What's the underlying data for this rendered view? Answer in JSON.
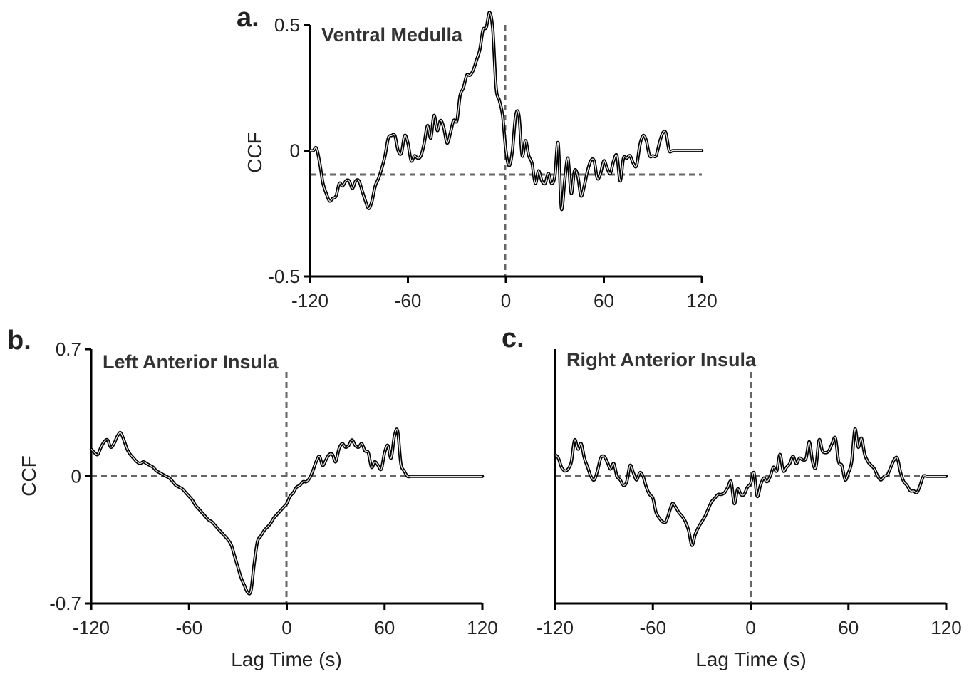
{
  "chart_data": [
    {
      "type": "line",
      "panel_letter": "a.",
      "title": "Ventral Medulla",
      "xlabel": "",
      "ylabel": "CCF",
      "xlim": [
        -120,
        120
      ],
      "ylim": [
        -0.5,
        0.5
      ],
      "x_ticks": [
        -120,
        -60,
        0,
        60,
        120
      ],
      "x_tick_labels": [
        "-120",
        "-60",
        "0",
        "60",
        "120"
      ],
      "y_ticks": [
        -0.5,
        0,
        0.5
      ],
      "y_tick_labels": [
        "-0.5",
        "0",
        "0.5"
      ],
      "reference_lines": {
        "x": 0,
        "y": 0
      },
      "grid": false,
      "series": [
        {
          "x": [
            -120,
            -118,
            -116,
            -114,
            -112,
            -110,
            -108,
            -106,
            -104,
            -102,
            -100,
            -98,
            -96,
            -94,
            -92,
            -90,
            -88,
            -86,
            -84,
            -82,
            -80,
            -78,
            -76,
            -74,
            -72,
            -70,
            -68,
            -66,
            -64,
            -62,
            -60,
            -58,
            -56,
            -54,
            -52,
            -50,
            -48,
            -46,
            -44,
            -42,
            -40,
            -38,
            -36,
            -34,
            -32,
            -30,
            -28,
            -26,
            -24,
            -22,
            -20,
            -18,
            -16,
            -14,
            -12,
            -10,
            -8,
            -6,
            -4,
            -2,
            0,
            2,
            4,
            6,
            8,
            10,
            12,
            14,
            16,
            18,
            20,
            22,
            24,
            26,
            28,
            30,
            32,
            34,
            36,
            38,
            40,
            42,
            44,
            46,
            48,
            50,
            52,
            54,
            56,
            58,
            60,
            62,
            64,
            66,
            68,
            70,
            72,
            74,
            76,
            78,
            80,
            82,
            84,
            86,
            88,
            90,
            92,
            94,
            96,
            98,
            100,
            102,
            104,
            106,
            108,
            110,
            112,
            114,
            116,
            118,
            120
          ],
          "y": [
            0.0,
            0.0,
            0.01,
            -0.05,
            -0.13,
            -0.17,
            -0.2,
            -0.19,
            -0.18,
            -0.13,
            -0.14,
            -0.12,
            -0.12,
            -0.15,
            -0.12,
            -0.12,
            -0.16,
            -0.2,
            -0.23,
            -0.2,
            -0.14,
            -0.11,
            -0.07,
            -0.02,
            0.05,
            0.06,
            0.06,
            0.0,
            -0.01,
            0.06,
            0.03,
            -0.04,
            -0.02,
            -0.03,
            -0.02,
            0.03,
            0.1,
            0.05,
            0.14,
            0.08,
            0.12,
            0.09,
            0.03,
            0.07,
            0.12,
            0.12,
            0.22,
            0.25,
            0.3,
            0.3,
            0.32,
            0.36,
            0.4,
            0.48,
            0.49,
            0.55,
            0.48,
            0.25,
            0.2,
            0.14,
            0.0,
            -0.06,
            0.0,
            0.14,
            0.14,
            -0.02,
            0.04,
            -0.02,
            -0.05,
            -0.13,
            -0.08,
            -0.12,
            -0.13,
            -0.09,
            -0.13,
            -0.1,
            0.03,
            -0.23,
            -0.12,
            -0.03,
            -0.17,
            -0.08,
            -0.1,
            -0.18,
            -0.14,
            -0.08,
            -0.04,
            -0.04,
            -0.11,
            -0.09,
            -0.04,
            -0.07,
            -0.09,
            -0.04,
            -0.02,
            -0.12,
            -0.03,
            -0.03,
            -0.02,
            -0.05,
            -0.06,
            0.02,
            0.06,
            0.04,
            -0.02,
            -0.02,
            -0.02,
            0.03,
            0.07,
            0.07,
            0.0,
            0.0,
            0.0,
            0.0,
            0.0,
            0.0,
            0.0,
            0.0,
            0.0,
            0.0,
            0.0
          ]
        }
      ]
    },
    {
      "type": "line",
      "panel_letter": "b.",
      "title": "Left Anterior Insula",
      "xlabel": "Lag Time (s)",
      "ylabel": "CCF",
      "xlim": [
        -120,
        120
      ],
      "ylim": [
        -0.7,
        0.7
      ],
      "x_ticks": [
        -120,
        -60,
        0,
        60,
        120
      ],
      "x_tick_labels": [
        "-120",
        "-60",
        "0",
        "60",
        "120"
      ],
      "y_ticks": [
        -0.7,
        0,
        0.7
      ],
      "y_tick_labels": [
        "-0.7",
        "0",
        "0.7"
      ],
      "reference_lines": {
        "x": 0,
        "y": 0
      },
      "grid": false,
      "series": [
        {
          "x": [
            -120,
            -118,
            -116,
            -114,
            -112,
            -110,
            -108,
            -106,
            -104,
            -102,
            -100,
            -98,
            -96,
            -94,
            -92,
            -90,
            -88,
            -86,
            -84,
            -82,
            -80,
            -78,
            -76,
            -74,
            -72,
            -70,
            -68,
            -66,
            -64,
            -62,
            -60,
            -58,
            -56,
            -54,
            -52,
            -50,
            -48,
            -46,
            -44,
            -42,
            -40,
            -38,
            -36,
            -34,
            -32,
            -30,
            -28,
            -26,
            -24,
            -22,
            -20,
            -18,
            -16,
            -14,
            -12,
            -10,
            -8,
            -6,
            -4,
            -2,
            0,
            2,
            4,
            6,
            8,
            10,
            12,
            14,
            16,
            18,
            20,
            22,
            24,
            26,
            28,
            30,
            32,
            34,
            36,
            38,
            40,
            42,
            44,
            46,
            48,
            50,
            52,
            54,
            56,
            58,
            60,
            62,
            64,
            66,
            68,
            70,
            72,
            74,
            76,
            78,
            80,
            82,
            84,
            86,
            88,
            90,
            92,
            94,
            96,
            98,
            100,
            102,
            104,
            106,
            108,
            110,
            112,
            114,
            116,
            118,
            120
          ],
          "y": [
            0.15,
            0.13,
            0.12,
            0.16,
            0.19,
            0.2,
            0.16,
            0.18,
            0.22,
            0.24,
            0.2,
            0.15,
            0.12,
            0.1,
            0.08,
            0.07,
            0.08,
            0.07,
            0.06,
            0.05,
            0.03,
            0.02,
            0.01,
            0.0,
            -0.01,
            -0.03,
            -0.05,
            -0.06,
            -0.07,
            -0.09,
            -0.11,
            -0.13,
            -0.16,
            -0.18,
            -0.2,
            -0.22,
            -0.24,
            -0.25,
            -0.27,
            -0.29,
            -0.31,
            -0.33,
            -0.35,
            -0.38,
            -0.44,
            -0.5,
            -0.56,
            -0.6,
            -0.64,
            -0.63,
            -0.48,
            -0.36,
            -0.33,
            -0.3,
            -0.28,
            -0.26,
            -0.23,
            -0.21,
            -0.19,
            -0.17,
            -0.15,
            -0.11,
            -0.09,
            -0.06,
            -0.05,
            -0.03,
            -0.03,
            -0.01,
            0.03,
            0.08,
            0.11,
            0.06,
            0.09,
            0.12,
            0.12,
            0.08,
            0.15,
            0.18,
            0.16,
            0.17,
            0.2,
            0.17,
            0.16,
            0.18,
            0.14,
            0.13,
            0.05,
            0.08,
            0.06,
            0.04,
            0.13,
            0.17,
            0.1,
            0.22,
            0.25,
            0.07,
            0.03,
            0.0,
            0.0,
            0.0,
            0.0,
            0.0,
            0.0,
            0.0,
            0.0,
            0.0,
            0.0,
            0.0,
            0.0,
            0.0,
            0.0,
            0.0,
            0.0,
            0.0,
            0.0,
            0.0,
            0.0,
            0.0,
            0.0,
            0.0,
            0.0
          ]
        }
      ]
    },
    {
      "type": "line",
      "panel_letter": "c.",
      "title": "Right Anterior Insula",
      "xlabel": "Lag Time (s)",
      "ylabel": "",
      "xlim": [
        -120,
        120
      ],
      "ylim": [
        -0.7,
        0.7
      ],
      "x_ticks": [
        -120,
        -60,
        0,
        60,
        120
      ],
      "x_tick_labels": [
        "-120",
        "-60",
        "0",
        "60",
        "120"
      ],
      "y_ticks": [],
      "y_tick_labels": [],
      "reference_lines": {
        "x": 0,
        "y": 0
      },
      "grid": false,
      "series": [
        {
          "x": [
            -120,
            -118,
            -116,
            -114,
            -112,
            -110,
            -108,
            -106,
            -104,
            -102,
            -100,
            -98,
            -96,
            -94,
            -92,
            -90,
            -88,
            -86,
            -84,
            -82,
            -80,
            -78,
            -76,
            -74,
            -72,
            -70,
            -68,
            -66,
            -64,
            -62,
            -60,
            -58,
            -56,
            -54,
            -52,
            -50,
            -48,
            -46,
            -44,
            -42,
            -40,
            -38,
            -36,
            -34,
            -32,
            -30,
            -28,
            -26,
            -24,
            -22,
            -20,
            -18,
            -16,
            -14,
            -12,
            -10,
            -8,
            -6,
            -4,
            -2,
            0,
            2,
            4,
            6,
            8,
            10,
            12,
            14,
            16,
            18,
            20,
            22,
            24,
            26,
            28,
            30,
            32,
            34,
            36,
            38,
            40,
            42,
            44,
            46,
            48,
            50,
            52,
            54,
            56,
            58,
            60,
            62,
            64,
            66,
            68,
            70,
            72,
            74,
            76,
            78,
            80,
            82,
            84,
            86,
            88,
            90,
            92,
            94,
            96,
            98,
            100,
            102,
            104,
            106,
            108,
            110,
            112,
            114,
            116,
            118,
            120
          ],
          "y": [
            0.12,
            0.1,
            0.05,
            0.03,
            0.04,
            0.08,
            0.2,
            0.15,
            0.18,
            0.1,
            0.05,
            0.0,
            -0.02,
            0.03,
            0.1,
            0.11,
            0.08,
            0.04,
            0.07,
            0.0,
            -0.02,
            -0.05,
            -0.03,
            0.06,
            0.02,
            -0.02,
            0.02,
            0.0,
            -0.06,
            -0.1,
            -0.12,
            -0.2,
            -0.23,
            -0.25,
            -0.25,
            -0.2,
            -0.15,
            -0.17,
            -0.2,
            -0.22,
            -0.25,
            -0.3,
            -0.38,
            -0.32,
            -0.28,
            -0.25,
            -0.22,
            -0.18,
            -0.14,
            -0.12,
            -0.1,
            -0.1,
            -0.09,
            -0.06,
            -0.03,
            -0.15,
            -0.07,
            -0.1,
            -0.1,
            -0.06,
            -0.04,
            0.02,
            -0.11,
            -0.05,
            -0.01,
            -0.03,
            0.0,
            0.05,
            0.03,
            0.12,
            0.03,
            0.05,
            0.07,
            0.11,
            0.07,
            0.1,
            0.09,
            0.1,
            0.19,
            0.08,
            0.05,
            0.2,
            0.14,
            0.13,
            0.14,
            0.18,
            0.21,
            0.08,
            0.06,
            -0.02,
            0.02,
            0.08,
            0.26,
            0.16,
            0.21,
            0.12,
            0.08,
            0.06,
            0.04,
            0.0,
            -0.02,
            0.0,
            0.01,
            0.05,
            0.09,
            0.1,
            0.02,
            -0.03,
            -0.05,
            -0.08,
            -0.08,
            -0.09,
            -0.05,
            0.0,
            0.0,
            0.0,
            0.0,
            0.0,
            0.0,
            0.0,
            0.0
          ]
        }
      ]
    }
  ]
}
